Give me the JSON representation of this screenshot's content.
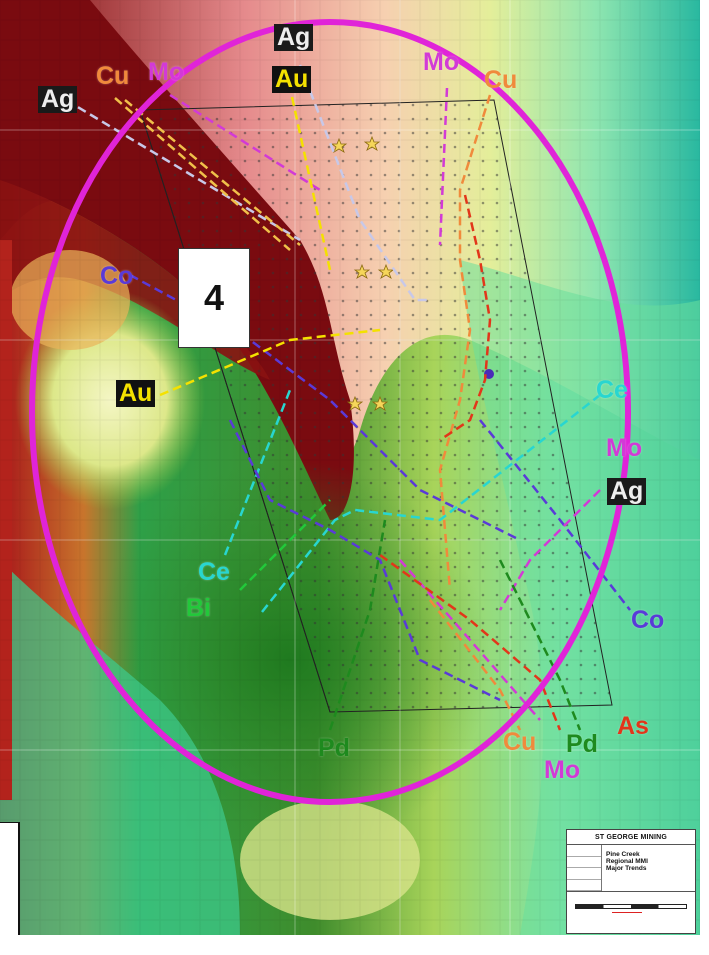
{
  "map": {
    "area_number": "4",
    "title_block": {
      "company": "ST GEORGE MINING",
      "title_lines": [
        "Pine Creek",
        "Regional MMI",
        "Major Trends"
      ]
    },
    "trend_labels": {
      "ag_top": "Ag",
      "au_top": "Au",
      "mo_top": "Mo",
      "cu_top_right": "Cu",
      "cu_top_left": "Cu",
      "mo_top_left": "Mo",
      "ag_left": "Ag",
      "co_left": "Co",
      "au_left": "Au",
      "ce_left": "Ce",
      "bi_left": "Bi",
      "pd_bottom": "Pd",
      "cu_bottom": "Cu",
      "mo_bottom": "Mo",
      "pd_bottom_right": "Pd",
      "as_right": "As",
      "co_right": "Co",
      "ag_right": "Ag",
      "mo_right": "Mo",
      "ce_right": "Ce"
    },
    "colors": {
      "ellipse": "#e024d8",
      "cu": "#f08a3c",
      "mo": "#d23ad6",
      "ag": "#c8c8e8",
      "au": "#f4e100",
      "co": "#5a3ad8",
      "ce": "#28d6d0",
      "bi": "#22c83a",
      "pd": "#1e8a1e",
      "as": "#e2361a"
    }
  }
}
